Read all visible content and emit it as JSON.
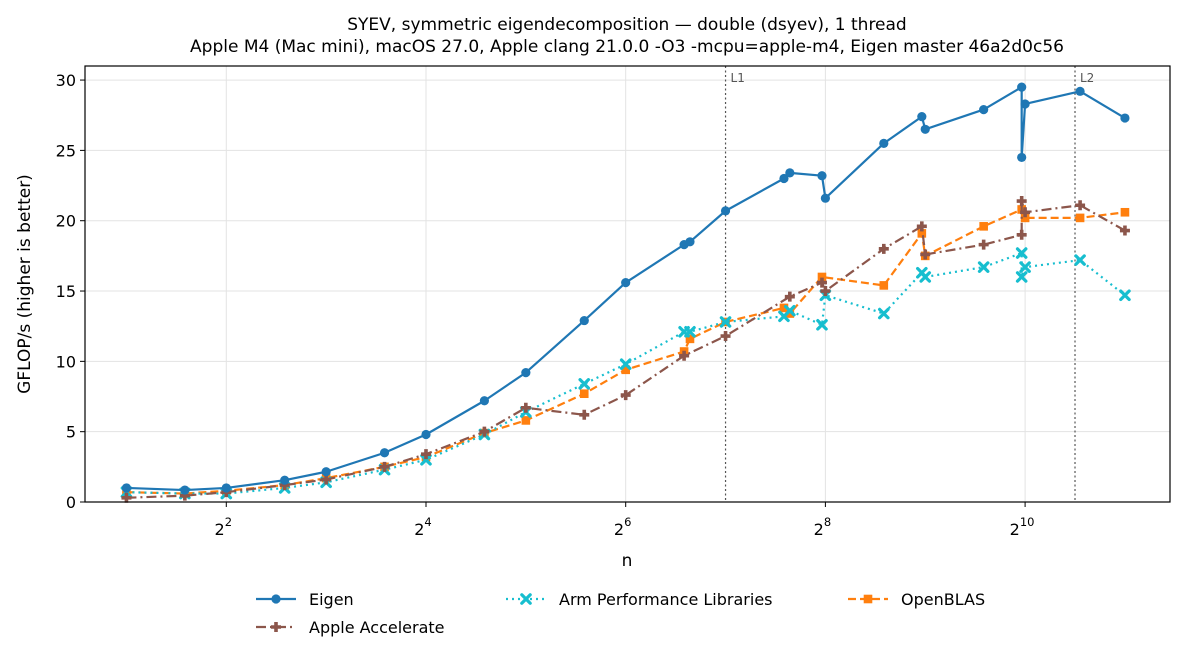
{
  "chart_data": {
    "type": "line",
    "title": "SYEV, symmetric eigendecomposition — double (dsyev), 1 thread",
    "subtitle": "Apple M4 (Mac mini), macOS 27.0, Apple clang 21.0.0 -O3 -mcpu=apple-m4, Eigen master 46a2d0c56",
    "xlabel": "n",
    "ylabel": "GFLOP/s (higher is better)",
    "xscale": "log2",
    "xlim": [
      1.5,
      2800
    ],
    "ylim": [
      0,
      31
    ],
    "xticks": [
      {
        "base": "2",
        "exp": "2",
        "value": 4
      },
      {
        "base": "2",
        "exp": "4",
        "value": 16
      },
      {
        "base": "2",
        "exp": "6",
        "value": 64
      },
      {
        "base": "2",
        "exp": "8",
        "value": 256
      },
      {
        "base": "2",
        "exp": "10",
        "value": 1024
      }
    ],
    "yticks": [
      0,
      5,
      10,
      15,
      20,
      25,
      30
    ],
    "grid": true,
    "legend_position": "bottom",
    "annotations": [
      {
        "label": "L1",
        "x": 128
      },
      {
        "label": "L2",
        "x": 1448
      }
    ],
    "series": [
      {
        "name": "Eigen",
        "color": "#1f77b4",
        "marker": "circle",
        "dash": "",
        "points": [
          [
            2,
            1.0
          ],
          [
            3,
            0.85
          ],
          [
            4,
            1.0
          ],
          [
            6,
            1.55
          ],
          [
            8,
            2.15
          ],
          [
            12,
            3.5
          ],
          [
            16,
            4.8
          ],
          [
            24,
            7.2
          ],
          [
            32,
            9.2
          ],
          [
            48,
            12.9
          ],
          [
            64,
            15.6
          ],
          [
            96,
            18.3
          ],
          [
            100,
            18.5
          ],
          [
            128,
            20.7
          ],
          [
            192,
            23.0
          ],
          [
            200,
            23.4
          ],
          [
            250,
            23.2
          ],
          [
            256,
            21.6
          ],
          [
            384,
            25.5
          ],
          [
            500,
            27.4
          ],
          [
            512,
            26.5
          ],
          [
            768,
            27.9
          ],
          [
            1000,
            29.5
          ],
          [
            1000,
            24.5
          ],
          [
            1024,
            28.3
          ],
          [
            1500,
            29.2
          ],
          [
            2048,
            27.3
          ]
        ]
      },
      {
        "name": "Apple Accelerate",
        "color": "#8c564b",
        "marker": "plus",
        "dash": "10,4,2,4",
        "points": [
          [
            2,
            0.3
          ],
          [
            3,
            0.45
          ],
          [
            4,
            0.7
          ],
          [
            6,
            1.2
          ],
          [
            8,
            1.6
          ],
          [
            12,
            2.5
          ],
          [
            16,
            3.4
          ],
          [
            24,
            5.0
          ],
          [
            32,
            6.7
          ],
          [
            48,
            6.2
          ],
          [
            64,
            7.6
          ],
          [
            96,
            10.4
          ],
          [
            128,
            11.8
          ],
          [
            200,
            14.6
          ],
          [
            250,
            15.6
          ],
          [
            256,
            15.0
          ],
          [
            384,
            18.0
          ],
          [
            500,
            19.6
          ],
          [
            512,
            17.6
          ],
          [
            768,
            18.3
          ],
          [
            1000,
            19.0
          ],
          [
            1000,
            21.4
          ],
          [
            1024,
            20.6
          ],
          [
            1500,
            21.1
          ],
          [
            2048,
            19.3
          ]
        ]
      },
      {
        "name": "Arm Performance Libraries",
        "color": "#17becf",
        "marker": "x",
        "dash": "2,4",
        "points": [
          [
            2,
            0.7
          ],
          [
            3,
            0.6
          ],
          [
            4,
            0.6
          ],
          [
            6,
            1.0
          ],
          [
            8,
            1.4
          ],
          [
            12,
            2.3
          ],
          [
            16,
            3.0
          ],
          [
            24,
            4.8
          ],
          [
            32,
            6.4
          ],
          [
            48,
            8.4
          ],
          [
            64,
            9.8
          ],
          [
            96,
            12.1
          ],
          [
            100,
            12.1
          ],
          [
            128,
            12.8
          ],
          [
            192,
            13.2
          ],
          [
            200,
            13.6
          ],
          [
            250,
            12.6
          ],
          [
            256,
            14.7
          ],
          [
            384,
            13.4
          ],
          [
            500,
            16.3
          ],
          [
            512,
            16.0
          ],
          [
            768,
            16.7
          ],
          [
            1000,
            17.7
          ],
          [
            1000,
            16.0
          ],
          [
            1024,
            16.7
          ],
          [
            1500,
            17.2
          ],
          [
            2048,
            14.7
          ]
        ]
      },
      {
        "name": "OpenBLAS",
        "color": "#ff7f0e",
        "marker": "square",
        "dash": "8,4",
        "points": [
          [
            2,
            0.7
          ],
          [
            3,
            0.6
          ],
          [
            4,
            0.8
          ],
          [
            6,
            1.2
          ],
          [
            8,
            1.7
          ],
          [
            12,
            2.5
          ],
          [
            16,
            3.2
          ],
          [
            24,
            4.9
          ],
          [
            32,
            5.8
          ],
          [
            48,
            7.7
          ],
          [
            64,
            9.4
          ],
          [
            96,
            10.7
          ],
          [
            100,
            11.6
          ],
          [
            128,
            12.8
          ],
          [
            192,
            13.8
          ],
          [
            200,
            13.4
          ],
          [
            250,
            16.0
          ],
          [
            384,
            15.4
          ],
          [
            500,
            19.1
          ],
          [
            512,
            17.5
          ],
          [
            768,
            19.6
          ],
          [
            1000,
            20.8
          ],
          [
            1024,
            20.2
          ],
          [
            1500,
            20.2
          ],
          [
            2048,
            20.6
          ]
        ]
      }
    ]
  }
}
